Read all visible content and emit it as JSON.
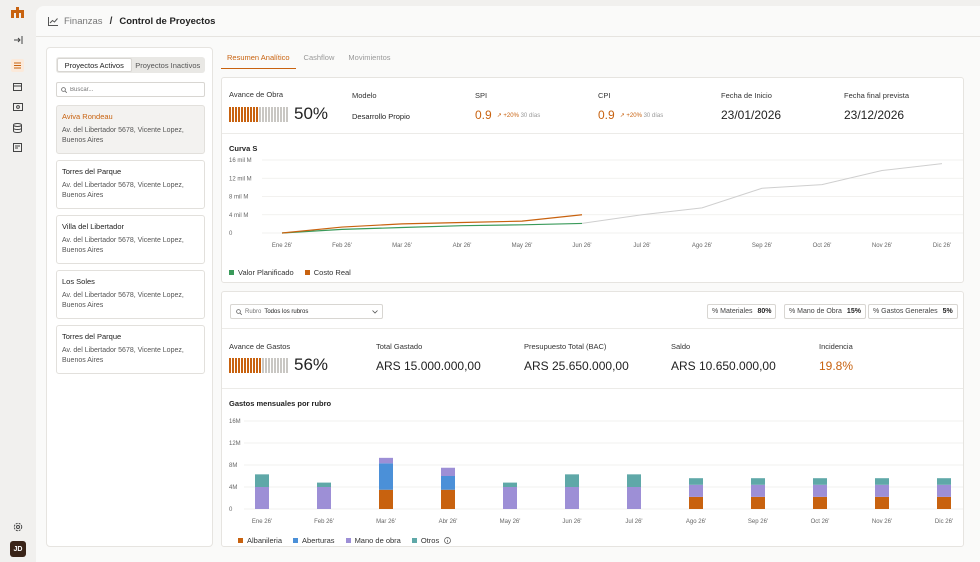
{
  "app": {
    "breadcrumb": [
      "Finanzas",
      "Control de Proyectos"
    ],
    "breadcrumb_sep": "/",
    "user_initials": "JD",
    "brand_color": "#c8620f"
  },
  "sidebar": {
    "icons": [
      "logo-icon",
      "collapse-icon",
      "list-icon",
      "calendar-icon",
      "wallet-icon",
      "database-icon",
      "report-icon",
      "settings-icon"
    ]
  },
  "projects": {
    "tabs": [
      "Proyectos Activos",
      "Proyectos Inactivos"
    ],
    "search_placeholder": "Buscar...",
    "items": [
      {
        "name": "Aviva Rondeau",
        "address": "Av. del Libertador 5678, Vicente Lopez, Buenos Aires",
        "selected": true
      },
      {
        "name": "Torres del Parque",
        "address": "Av. del Libertador 5678, Vicente Lopez, Buenos Aires"
      },
      {
        "name": "Villa del Libertador",
        "address": "Av. del Libertador 5678, Vicente Lopez, Buenos Aires"
      },
      {
        "name": "Los Soles",
        "address": "Av. del Libertador 5678, Vicente Lopez, Buenos Aires"
      },
      {
        "name": "Torres del Parque",
        "address": "Av. del Libertador 5678, Vicente Lopez, Buenos Aires"
      }
    ]
  },
  "tabs": [
    "Resumen Analítico",
    "Cashflow",
    "Movimientos"
  ],
  "summary": {
    "avance_obra": {
      "label": "Avance de Obra",
      "value": "50%",
      "fraction": 0.5
    },
    "modelo": {
      "label": "Modelo",
      "value": "Desarrollo Propio"
    },
    "spi": {
      "label": "SPI",
      "value": "0.9",
      "trend": "+20%",
      "period": "30 días"
    },
    "cpi": {
      "label": "CPI",
      "value": "0.9",
      "trend": "+20%",
      "period": "30 días"
    },
    "inicio": {
      "label": "Fecha de Inicio",
      "value": "23/01/2026"
    },
    "final": {
      "label": "Fecha final prevista",
      "value": "23/12/2026"
    }
  },
  "gastos": {
    "rubro_label": "Rubro",
    "rubro_value": "Todos los rubros",
    "pcts": [
      {
        "label": "% Materiales",
        "value": "80%"
      },
      {
        "label": "% Mano de Obra",
        "value": "15%"
      },
      {
        "label": "% Gastos Generales",
        "value": "5%"
      }
    ],
    "avance": {
      "label": "Avance de Gastos",
      "value": "56%",
      "fraction": 0.56
    },
    "total": {
      "label": "Total Gastado",
      "value": "ARS 15.000.000,00"
    },
    "presupuesto": {
      "label": "Presupuesto Total (BAC)",
      "value": "ARS 25.650.000,00"
    },
    "saldo": {
      "label": "Saldo",
      "value": "ARS 10.650.000,00"
    },
    "incidencia": {
      "label": "Incidencia",
      "value": "19.8%"
    }
  },
  "chart_data": [
    {
      "type": "line",
      "title": "Curva S",
      "x": [
        "Ene 26'",
        "Feb 26'",
        "Mar 26'",
        "Abr 26'",
        "May 26'",
        "Jun 26'",
        "Jul 26'",
        "Ago 26'",
        "Sep 26'",
        "Oct 26'",
        "Nov 26'",
        "Dic 26'"
      ],
      "y_ticks": [
        "0",
        "4 mil M",
        "8 mil M",
        "12 mil M",
        "16 mil M"
      ],
      "ylim": [
        0,
        16
      ],
      "series": [
        {
          "name": "Valor Planificado",
          "color": "#3a9a5a",
          "values": [
            0,
            0.8,
            1.2,
            1.6,
            1.8,
            2.1,
            null,
            null,
            null,
            null,
            null,
            null
          ]
        },
        {
          "name": "Costo Real",
          "color": "#c8620f",
          "values": [
            0,
            1.3,
            2.0,
            2.3,
            2.6,
            4.0,
            null,
            null,
            null,
            null,
            null,
            null
          ]
        },
        {
          "name": "",
          "color": "#cfcfcf",
          "values": [
            null,
            null,
            null,
            null,
            null,
            2.1,
            4.0,
            5.5,
            9.8,
            10.6,
            13.7,
            15.2
          ]
        }
      ],
      "legend": "bottom-left"
    },
    {
      "type": "bar",
      "title": "Gastos mensuales por rubro",
      "categories": [
        "Ene 26'",
        "Feb 26'",
        "Mar 26'",
        "Abr 26'",
        "May 26'",
        "Jun 26'",
        "Jul 26'",
        "Ago 26'",
        "Sep 26'",
        "Oct 26'",
        "Nov 26'",
        "Dic 26'"
      ],
      "y_ticks": [
        "0",
        "4M",
        "8M",
        "12M",
        "16M"
      ],
      "ylim": [
        0,
        16
      ],
      "stacked": true,
      "series": [
        {
          "name": "Albanileria",
          "color": "#c8620f",
          "values": [
            0,
            0,
            3.5,
            3.5,
            0,
            0,
            0,
            2.2,
            2.2,
            2.2,
            2.2,
            2.2
          ]
        },
        {
          "name": "Aberturas",
          "color": "#4b90d8",
          "values": [
            0,
            0,
            4.8,
            2.5,
            0,
            0,
            0,
            0,
            0,
            0,
            0,
            0
          ]
        },
        {
          "name": "Mano de obra",
          "color": "#9d8fd6",
          "values": [
            4,
            4,
            1,
            1.5,
            4,
            4,
            4,
            2.2,
            2.2,
            2.2,
            2.2,
            2.2
          ]
        },
        {
          "name": "Otros",
          "color": "#5fa8a8",
          "values": [
            2.3,
            0.8,
            0,
            0,
            0.8,
            2.3,
            2.3,
            1.2,
            1.2,
            1.2,
            1.2,
            1.2
          ]
        }
      ],
      "legend": "bottom-left"
    }
  ]
}
